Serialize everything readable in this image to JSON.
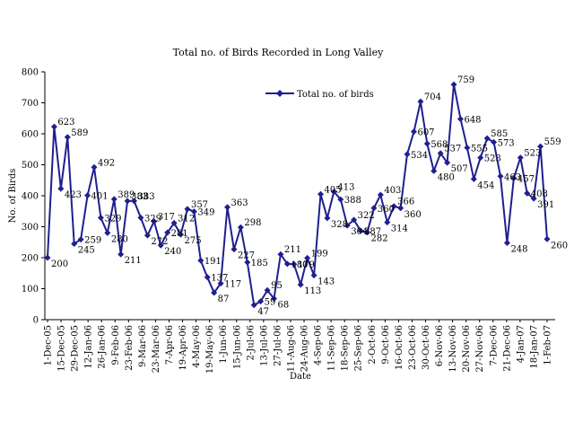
{
  "chart_data": {
    "type": "line",
    "title": "Total no. of Birds Recorded in Long Valley",
    "xlabel": "Date",
    "ylabel": "No. of Birds",
    "ylim": [
      0,
      800
    ],
    "yticks": [
      0,
      100,
      200,
      300,
      400,
      500,
      600,
      700,
      800
    ],
    "legend_position": "top-center",
    "grid": false,
    "line_color": "#1f1f8f",
    "x_tick_labels": [
      "1-Dec-05",
      "15-Dec-05",
      "29-Dec-05",
      "12-Jan-06",
      "26-Jan-06",
      "9-Feb-06",
      "23-Feb-06",
      "9-Mar-06",
      "23-Mar-06",
      "7-Apr-06",
      "19-Apr-06",
      "4-May-06",
      "19-May-06",
      "1-Jun-06",
      "15-Jun-06",
      "2-Jul-06",
      "13-Jul-06",
      "27-Jul-06",
      "11-Aug-06",
      "24-Aug-06",
      "4-Sep-06",
      "11-Sep-06",
      "18-Sep-06",
      "25-Sep-06",
      "2-Oct-06",
      "9-Oct-06",
      "16-Oct-06",
      "23-Oct-06",
      "30-Oct-06",
      "6-Nov-06",
      "13-Nov-06",
      "20-Nov-06",
      "27-Nov-06",
      "7-Dec-06",
      "21-Dec-06",
      "4-Jan-07",
      "18-Jan-07",
      "1-Feb-07"
    ],
    "series": [
      {
        "name": "Total no. of birds",
        "values": [
          200,
          623,
          423,
          589,
          245,
          259,
          401,
          492,
          329,
          280,
          389,
          211,
          383,
          383,
          329,
          272,
          317,
          240,
          281,
          312,
          275,
          357,
          349,
          191,
          137,
          87,
          117,
          363,
          227,
          298,
          185,
          47,
          59,
          95,
          68,
          211,
          180,
          179,
          113,
          199,
          143,
          405,
          328,
          413,
          388,
          304,
          322,
          287,
          282,
          360,
          403,
          314,
          366,
          360,
          534,
          607,
          704,
          568,
          480,
          537,
          507,
          759,
          648,
          555,
          454,
          523,
          585,
          573,
          463,
          248,
          457,
          523,
          408,
          391,
          559,
          260
        ],
        "labels": [
          "200",
          "623",
          "423",
          "589",
          "245",
          "259",
          "401",
          "492",
          "329",
          "280",
          "389",
          "211",
          "383",
          "383",
          "329",
          "272",
          "317",
          "240",
          "281",
          "312",
          "275",
          "357",
          "349",
          "191",
          "137",
          "87",
          "117",
          "363",
          "227",
          "298",
          "185",
          "47",
          "59",
          "95",
          "68",
          "211",
          "180",
          "179",
          "113",
          "199",
          "143",
          "405",
          "328",
          "413",
          "388",
          "304",
          "322",
          "287",
          "282",
          "360",
          "403",
          "314",
          "366",
          "360",
          "534",
          "607",
          "704",
          "568",
          "480",
          "537",
          "507",
          "759",
          "648",
          "555",
          "454",
          "523",
          "585",
          "573",
          "463",
          "248",
          "457",
          "523",
          "408",
          "391",
          "559",
          "260"
        ]
      }
    ]
  }
}
